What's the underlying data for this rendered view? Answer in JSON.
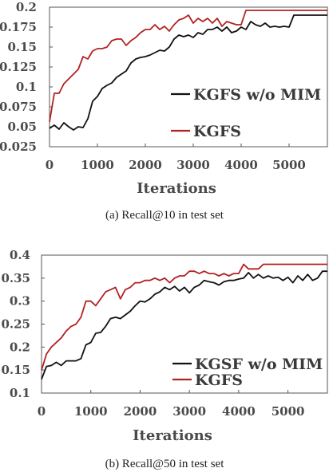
{
  "chart_data": [
    {
      "type": "line",
      "caption": "(a)  Recall@10 in test set",
      "xlabel": "Iterations",
      "ylabel": "",
      "xlim": [
        0,
        5800
      ],
      "ylim": [
        0.025,
        0.2
      ],
      "xticks": [
        0,
        1000,
        2000,
        3000,
        4000,
        5000
      ],
      "xtick_labels": [
        "0",
        "1000",
        "2000",
        "3000",
        "4000",
        "5000"
      ],
      "yticks": [
        0.025,
        0.05,
        0.075,
        0.1,
        0.125,
        0.15,
        0.175,
        0.2
      ],
      "ytick_labels": [
        "0.025",
        "0.05",
        "0.075",
        "0.1",
        "0.125",
        "0.15",
        "0.175",
        "0.2"
      ],
      "legend_position": "bottom-right",
      "series": [
        {
          "name": "KGFS w/o MIM",
          "color": "#111111",
          "x": [
            0,
            100,
            200,
            300,
            400,
            500,
            600,
            700,
            800,
            900,
            1000,
            1100,
            1200,
            1300,
            1400,
            1500,
            1600,
            1700,
            1800,
            1900,
            2000,
            2100,
            2200,
            2300,
            2400,
            2500,
            2600,
            2700,
            2800,
            2900,
            3000,
            3100,
            3200,
            3300,
            3400,
            3500,
            3600,
            3700,
            3800,
            3900,
            4000,
            4100,
            4200,
            4300,
            4400,
            4500,
            4600,
            4700,
            4800,
            4900,
            5000,
            5100,
            5200,
            5300,
            5400,
            5500,
            5600,
            5700,
            5800
          ],
          "y": [
            0.048,
            0.052,
            0.047,
            0.055,
            0.05,
            0.046,
            0.05,
            0.049,
            0.06,
            0.082,
            0.088,
            0.098,
            0.102,
            0.105,
            0.112,
            0.116,
            0.12,
            0.13,
            0.135,
            0.137,
            0.138,
            0.14,
            0.143,
            0.146,
            0.145,
            0.15,
            0.16,
            0.165,
            0.163,
            0.165,
            0.162,
            0.168,
            0.166,
            0.172,
            0.172,
            0.175,
            0.17,
            0.175,
            0.168,
            0.17,
            0.175,
            0.172,
            0.182,
            0.178,
            0.176,
            0.18,
            0.175,
            0.176,
            0.175,
            0.176,
            0.175,
            0.19,
            0.19,
            0.19,
            0.19,
            0.19,
            0.19,
            0.19,
            0.19
          ]
        },
        {
          "name": "KGFS",
          "color": "#b22222",
          "x": [
            0,
            100,
            200,
            300,
            400,
            500,
            600,
            700,
            800,
            900,
            1000,
            1100,
            1200,
            1300,
            1400,
            1500,
            1600,
            1700,
            1800,
            1900,
            2000,
            2100,
            2200,
            2300,
            2400,
            2500,
            2600,
            2700,
            2800,
            2900,
            3000,
            3100,
            3200,
            3300,
            3400,
            3500,
            3600,
            3700,
            3800,
            3900,
            4000,
            4100,
            4200,
            4300,
            4400,
            4500,
            4600,
            4700,
            4800,
            4900,
            5000,
            5100,
            5200,
            5300,
            5400,
            5500,
            5600,
            5700,
            5800
          ],
          "y": [
            0.056,
            0.092,
            0.092,
            0.104,
            0.11,
            0.116,
            0.122,
            0.138,
            0.135,
            0.145,
            0.148,
            0.148,
            0.15,
            0.158,
            0.16,
            0.16,
            0.152,
            0.158,
            0.162,
            0.168,
            0.172,
            0.172,
            0.178,
            0.172,
            0.176,
            0.17,
            0.178,
            0.184,
            0.186,
            0.19,
            0.18,
            0.186,
            0.182,
            0.186,
            0.18,
            0.186,
            0.176,
            0.182,
            0.18,
            0.178,
            0.178,
            0.196,
            0.196,
            0.196,
            0.196,
            0.196,
            0.196,
            0.196,
            0.196,
            0.196,
            0.196,
            0.196,
            0.196,
            0.196,
            0.196,
            0.196,
            0.196,
            0.196,
            0.196
          ]
        }
      ]
    },
    {
      "type": "line",
      "caption": "(b)  Recall@50 in test set",
      "xlabel": "Iterations",
      "ylabel": "",
      "xlim": [
        0,
        5800
      ],
      "ylim": [
        0.1,
        0.4
      ],
      "xticks": [
        0,
        1000,
        2000,
        3000,
        4000,
        5000
      ],
      "xtick_labels": [
        "0",
        "1000",
        "2000",
        "3000",
        "4000",
        "5000"
      ],
      "yticks": [
        0.1,
        0.15,
        0.2,
        0.25,
        0.3,
        0.35,
        0.4
      ],
      "ytick_labels": [
        "0.1",
        "0.15",
        "0.2",
        "0.25",
        "0.3",
        "0.35",
        "0.4"
      ],
      "legend_position": "bottom-right",
      "series": [
        {
          "name": "KGSF w/o MIM",
          "color": "#111111",
          "x": [
            0,
            100,
            200,
            300,
            400,
            500,
            600,
            700,
            800,
            900,
            1000,
            1100,
            1200,
            1300,
            1400,
            1500,
            1600,
            1700,
            1800,
            1900,
            2000,
            2100,
            2200,
            2300,
            2400,
            2500,
            2600,
            2700,
            2800,
            2900,
            3000,
            3100,
            3200,
            3300,
            3400,
            3500,
            3600,
            3700,
            3800,
            3900,
            4000,
            4100,
            4200,
            4300,
            4400,
            4500,
            4600,
            4700,
            4800,
            4900,
            5000,
            5100,
            5200,
            5300,
            5400,
            5500,
            5600,
            5700,
            5800
          ],
          "y": [
            0.13,
            0.158,
            0.16,
            0.167,
            0.16,
            0.17,
            0.17,
            0.17,
            0.175,
            0.205,
            0.21,
            0.23,
            0.232,
            0.245,
            0.262,
            0.265,
            0.262,
            0.27,
            0.278,
            0.29,
            0.3,
            0.298,
            0.305,
            0.315,
            0.32,
            0.33,
            0.325,
            0.332,
            0.322,
            0.33,
            0.318,
            0.33,
            0.335,
            0.345,
            0.342,
            0.34,
            0.335,
            0.342,
            0.345,
            0.345,
            0.348,
            0.35,
            0.362,
            0.35,
            0.358,
            0.35,
            0.355,
            0.35,
            0.352,
            0.345,
            0.352,
            0.34,
            0.355,
            0.345,
            0.358,
            0.345,
            0.35,
            0.365,
            0.365
          ]
        },
        {
          "name": "KGFS",
          "color": "#b22222",
          "x": [
            0,
            100,
            200,
            300,
            400,
            500,
            600,
            700,
            800,
            900,
            1000,
            1100,
            1200,
            1300,
            1400,
            1500,
            1600,
            1700,
            1800,
            1900,
            2000,
            2100,
            2200,
            2300,
            2400,
            2500,
            2600,
            2700,
            2800,
            2900,
            3000,
            3100,
            3200,
            3300,
            3400,
            3500,
            3600,
            3700,
            3800,
            3900,
            4000,
            4100,
            4200,
            4300,
            4400,
            4500,
            4600,
            4700,
            4800,
            4900,
            5000,
            5100,
            5200,
            5300,
            5400,
            5500,
            5600,
            5700,
            5800
          ],
          "y": [
            0.15,
            0.185,
            0.2,
            0.21,
            0.22,
            0.235,
            0.245,
            0.25,
            0.265,
            0.3,
            0.3,
            0.29,
            0.305,
            0.32,
            0.325,
            0.33,
            0.305,
            0.325,
            0.33,
            0.34,
            0.34,
            0.345,
            0.345,
            0.35,
            0.345,
            0.35,
            0.34,
            0.35,
            0.355,
            0.355,
            0.365,
            0.365,
            0.36,
            0.365,
            0.36,
            0.36,
            0.355,
            0.36,
            0.355,
            0.36,
            0.36,
            0.38,
            0.37,
            0.37,
            0.37,
            0.38,
            0.38,
            0.38,
            0.38,
            0.38,
            0.38,
            0.38,
            0.38,
            0.38,
            0.38,
            0.38,
            0.38,
            0.38,
            0.38
          ]
        }
      ]
    }
  ]
}
